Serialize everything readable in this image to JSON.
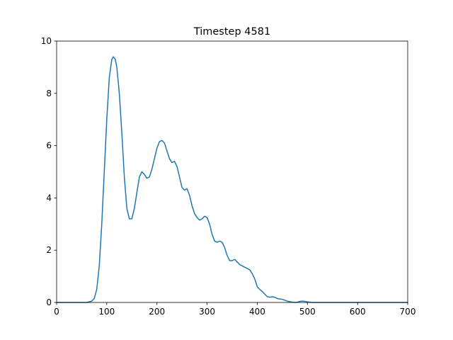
{
  "chart_data": {
    "type": "line",
    "title": "Timestep 4581",
    "xlabel": "",
    "ylabel": "",
    "xlim": [
      0,
      700
    ],
    "ylim": [
      0,
      10
    ],
    "xticks": [
      0,
      100,
      200,
      300,
      400,
      500,
      600,
      700
    ],
    "yticks": [
      0,
      2,
      4,
      6,
      8,
      10
    ],
    "grid": false,
    "line_color": "#1f77b4",
    "series": [
      {
        "x": [
          0,
          40,
          60,
          70,
          75,
          80,
          85,
          90,
          95,
          100,
          105,
          110,
          113,
          117,
          120,
          125,
          130,
          135,
          140,
          145,
          150,
          155,
          160,
          165,
          170,
          175,
          180,
          185,
          190,
          195,
          200,
          205,
          210,
          215,
          220,
          225,
          230,
          235,
          240,
          245,
          250,
          255,
          260,
          265,
          270,
          275,
          280,
          285,
          290,
          295,
          300,
          305,
          310,
          315,
          320,
          325,
          330,
          335,
          340,
          345,
          350,
          355,
          360,
          365,
          370,
          375,
          380,
          385,
          390,
          395,
          400,
          405,
          410,
          415,
          420,
          425,
          430,
          435,
          440,
          450,
          460,
          470,
          475,
          480,
          485,
          490,
          495,
          500,
          510,
          520,
          530,
          540,
          550,
          560,
          570,
          580,
          590,
          600,
          610,
          620,
          630,
          640,
          650,
          660,
          670,
          680,
          690,
          700
        ],
        "y": [
          0,
          0,
          0,
          0.05,
          0.15,
          0.5,
          1.4,
          3.0,
          5.0,
          7.0,
          8.6,
          9.3,
          9.4,
          9.3,
          9.0,
          8.0,
          6.5,
          4.8,
          3.6,
          3.2,
          3.2,
          3.6,
          4.2,
          4.8,
          5.0,
          4.9,
          4.75,
          4.8,
          5.1,
          5.5,
          5.9,
          6.15,
          6.2,
          6.1,
          5.8,
          5.5,
          5.35,
          5.4,
          5.2,
          4.8,
          4.4,
          4.3,
          4.35,
          4.1,
          3.7,
          3.4,
          3.25,
          3.15,
          3.2,
          3.3,
          3.25,
          3.0,
          2.6,
          2.35,
          2.3,
          2.35,
          2.3,
          2.1,
          1.8,
          1.6,
          1.6,
          1.65,
          1.55,
          1.45,
          1.4,
          1.35,
          1.3,
          1.25,
          1.1,
          0.9,
          0.6,
          0.5,
          0.42,
          0.32,
          0.22,
          0.2,
          0.22,
          0.2,
          0.15,
          0.12,
          0.05,
          0.01,
          0,
          0.01,
          0.04,
          0.05,
          0.04,
          0.02,
          0,
          0,
          0,
          0,
          0,
          0,
          0,
          0,
          0,
          0,
          0,
          0,
          0,
          0,
          0,
          0,
          0,
          0,
          0,
          0
        ]
      }
    ]
  }
}
